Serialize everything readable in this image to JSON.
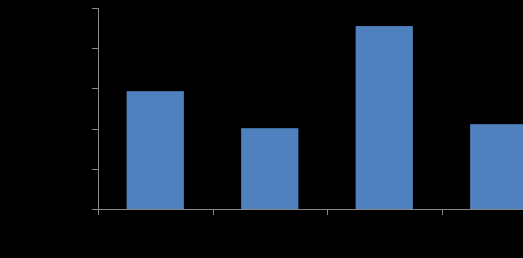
{
  "chart_data": {
    "type": "bar",
    "categories": [
      null,
      null,
      null,
      null
    ],
    "values": [
      2.93,
      2.01,
      4.55,
      2.11
    ],
    "color": "#5081bf",
    "ylim": [
      0,
      5
    ],
    "yticks": [
      0,
      1,
      2,
      3,
      4,
      5
    ],
    "grid": false
  }
}
